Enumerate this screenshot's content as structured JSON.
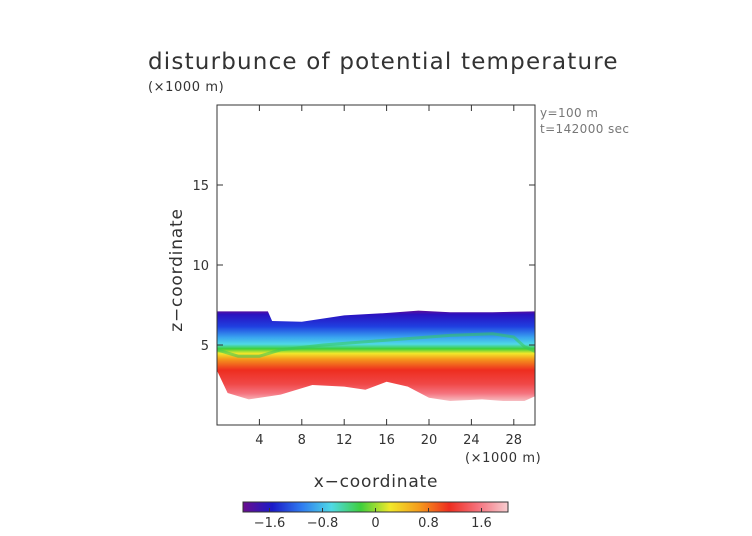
{
  "chart_data": {
    "type": "heatmap",
    "title": "disturbunce of potential temperature",
    "z_unit_label": "(×1000 m)",
    "x_unit_label": "(×1000 m)",
    "xlabel": "x−coordinate",
    "ylabel": "z−coordinate",
    "annotations": [
      "y=100 m",
      "t=142000 sec"
    ],
    "xlim": [
      0,
      30
    ],
    "ylim": [
      0,
      20
    ],
    "x_ticks": [
      4,
      8,
      12,
      16,
      20,
      24,
      28
    ],
    "x_tick_labels": [
      "4",
      "8",
      "12",
      "16",
      "20",
      "24",
      "28"
    ],
    "y_ticks": [
      5,
      10,
      15
    ],
    "y_tick_labels": [
      "5",
      "10",
      "15"
    ],
    "colorbar": {
      "range": [
        -2.0,
        2.0
      ],
      "ticks": [
        -1.6,
        -0.8,
        0,
        0.8,
        1.6
      ],
      "tick_labels": [
        "−1.6",
        "−0.8",
        "0",
        "0.8",
        "1.6"
      ],
      "colors": [
        "#6a0d8e",
        "#1a1ac8",
        "#2f7cf0",
        "#4fd9e6",
        "#3ecf3c",
        "#f2e82a",
        "#f59a1c",
        "#ee2d1f",
        "#f5737e",
        "#f7cdd0"
      ]
    },
    "field_extent": {
      "top_z": [
        [
          0,
          7.1
        ],
        [
          4.8,
          7.1
        ],
        [
          5.2,
          6.5
        ],
        [
          8,
          6.45
        ],
        [
          12,
          6.85
        ],
        [
          16,
          7.0
        ],
        [
          19,
          7.15
        ],
        [
          22,
          7.05
        ],
        [
          26,
          7.05
        ],
        [
          30,
          7.1
        ]
      ],
      "bottom_z": [
        [
          0,
          3.4
        ],
        [
          1.0,
          2.0
        ],
        [
          3,
          1.6
        ],
        [
          6,
          1.9
        ],
        [
          9,
          2.5
        ],
        [
          12,
          2.4
        ],
        [
          14,
          2.2
        ],
        [
          16,
          2.7
        ],
        [
          18,
          2.4
        ],
        [
          20,
          1.7
        ],
        [
          22,
          1.5
        ],
        [
          25,
          1.6
        ],
        [
          27,
          1.5
        ],
        [
          29,
          1.5
        ],
        [
          30,
          1.8
        ]
      ]
    },
    "zero_contour_z": [
      [
        0,
        4.7
      ],
      [
        2,
        4.3
      ],
      [
        4,
        4.3
      ],
      [
        6,
        4.7
      ],
      [
        10,
        5.0
      ],
      [
        14,
        5.2
      ],
      [
        18,
        5.4
      ],
      [
        22,
        5.6
      ],
      [
        26,
        5.7
      ],
      [
        28,
        5.5
      ],
      [
        29,
        4.9
      ],
      [
        30,
        4.6
      ]
    ]
  }
}
